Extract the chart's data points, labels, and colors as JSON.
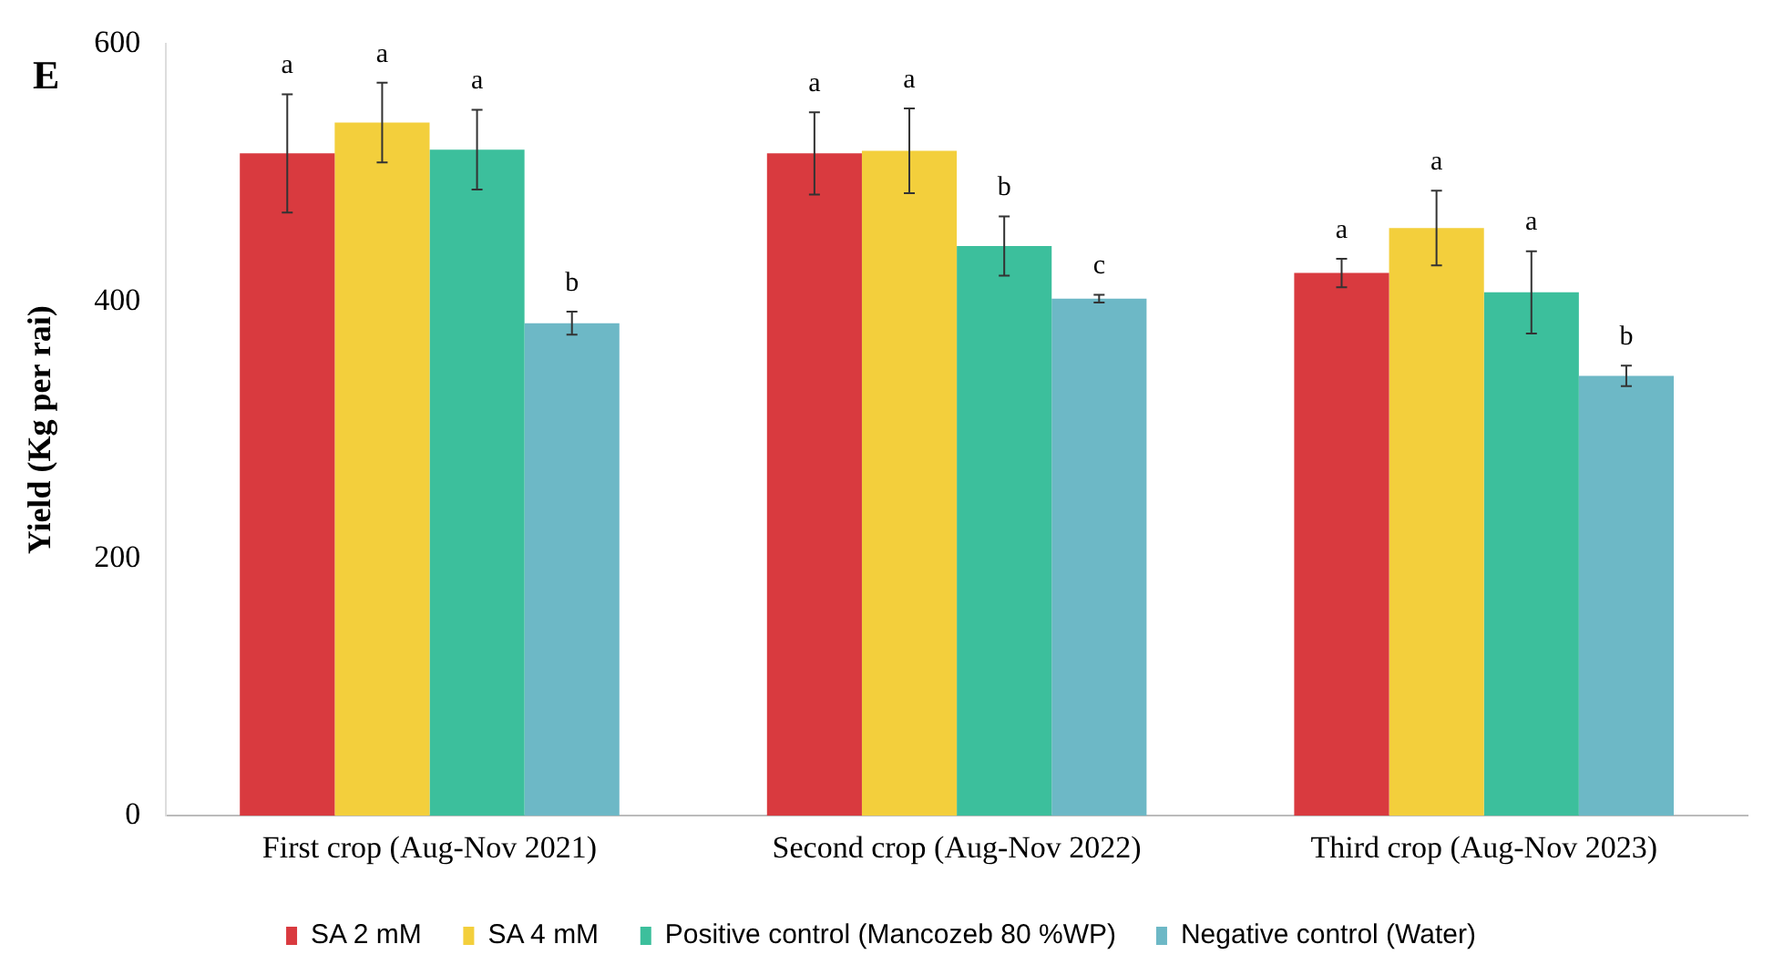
{
  "chart_data": {
    "type": "bar",
    "ylabel": "Yield (Kg per rai)",
    "categories": [
      "First crop (Aug-Nov 2021)",
      "Second crop (Aug-Nov 2022)",
      "Third crop (Aug-Nov 2023)"
    ],
    "series": [
      {
        "name": "SA 2 mM",
        "color": "#d93a3f",
        "values": [
          515,
          515,
          422
        ],
        "errors": [
          46,
          32,
          11
        ],
        "value_labels": [
          "a",
          "a",
          "a"
        ]
      },
      {
        "name": "SA 4 mM",
        "color": "#f3cf3c",
        "values": [
          539,
          517,
          457
        ],
        "errors": [
          31,
          33,
          29
        ],
        "value_labels": [
          "a",
          "a",
          "a"
        ]
      },
      {
        "name": "Positive control (Mancozeb 80 %WP)",
        "color": "#3cbf9c",
        "values": [
          518,
          443,
          407
        ],
        "errors": [
          31,
          23,
          32
        ],
        "value_labels": [
          "a",
          "b",
          "a"
        ]
      },
      {
        "name": "Negative control (Water)",
        "color": "#6db8c6",
        "values": [
          383,
          402,
          342
        ],
        "errors": [
          9,
          3,
          8
        ],
        "value_labels": [
          "b",
          "c",
          "b"
        ]
      }
    ],
    "ylim": [
      0,
      600
    ],
    "yticks": [
      0,
      200,
      400,
      600
    ],
    "grid": false,
    "legend": "bottom",
    "annotations": [
      "E"
    ]
  }
}
